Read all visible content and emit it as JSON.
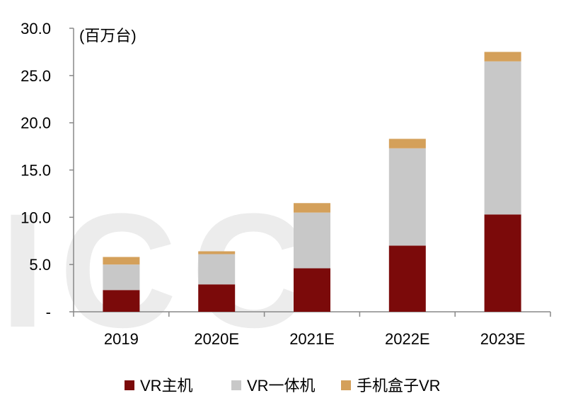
{
  "chart_data": {
    "type": "bar",
    "stacked": true,
    "unit_label": "(百万台)",
    "categories": [
      "2019",
      "2020E",
      "2021E",
      "2022E",
      "2023E"
    ],
    "series": [
      {
        "name": "VR主机",
        "values": [
          2.3,
          2.9,
          4.6,
          7.0,
          10.3
        ],
        "color": "#7b0a0a"
      },
      {
        "name": "VR一体机",
        "values": [
          2.7,
          3.2,
          5.9,
          10.3,
          16.2
        ],
        "color": "#c8c8c8"
      },
      {
        "name": "手机盒子VR",
        "values": [
          0.8,
          0.3,
          1.0,
          1.0,
          1.0
        ],
        "color": "#d4a05a"
      }
    ],
    "ylim": [
      0,
      30
    ],
    "yticks": [
      "-",
      "5.0",
      "10.0",
      "15.0",
      "20.0",
      "25.0",
      "30.0"
    ],
    "ytick_values": [
      0,
      5,
      10,
      15,
      20,
      25,
      30
    ],
    "legend_position": "bottom",
    "grid": false
  }
}
